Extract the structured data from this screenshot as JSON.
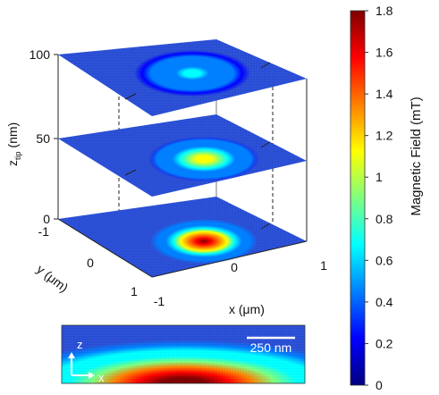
{
  "chart_data": {
    "type": "heatmap",
    "planes": [
      {
        "z_nm": 0,
        "peak_mT": 1.8
      },
      {
        "z_nm": 50,
        "peak_mT": 1.2
      },
      {
        "z_nm": 100,
        "peak_mT": 0.65
      }
    ],
    "z_axis": {
      "label_base": "z",
      "label_sub": "tip",
      "label_unit": " (nm)",
      "ticks": [
        "0",
        "50",
        "100"
      ]
    },
    "y_axis": {
      "label": "y (μm)",
      "ticks": [
        "-1",
        "0",
        "1"
      ],
      "range": [
        -1,
        1
      ]
    },
    "x_axis": {
      "label": "x (μm)",
      "ticks": [
        "-1",
        "0",
        "1"
      ],
      "range": [
        -1,
        1
      ]
    },
    "colorbar": {
      "label": "Magnetic Field (mT)",
      "range": [
        0,
        1.8
      ],
      "ticks": [
        "0",
        "0.2",
        "0.4",
        "0.6",
        "0.8",
        "1",
        "1.2",
        "1.4",
        "1.6",
        "1.8"
      ],
      "colormap": [
        "#00007f",
        "#0000ff",
        "#007fff",
        "#00ffff",
        "#7fff7f",
        "#ffff00",
        "#ff7f00",
        "#ff0000",
        "#7f0000"
      ]
    },
    "inset": {
      "z_label": "z",
      "x_label": "x",
      "scale_bar_label": "250 nm"
    }
  }
}
